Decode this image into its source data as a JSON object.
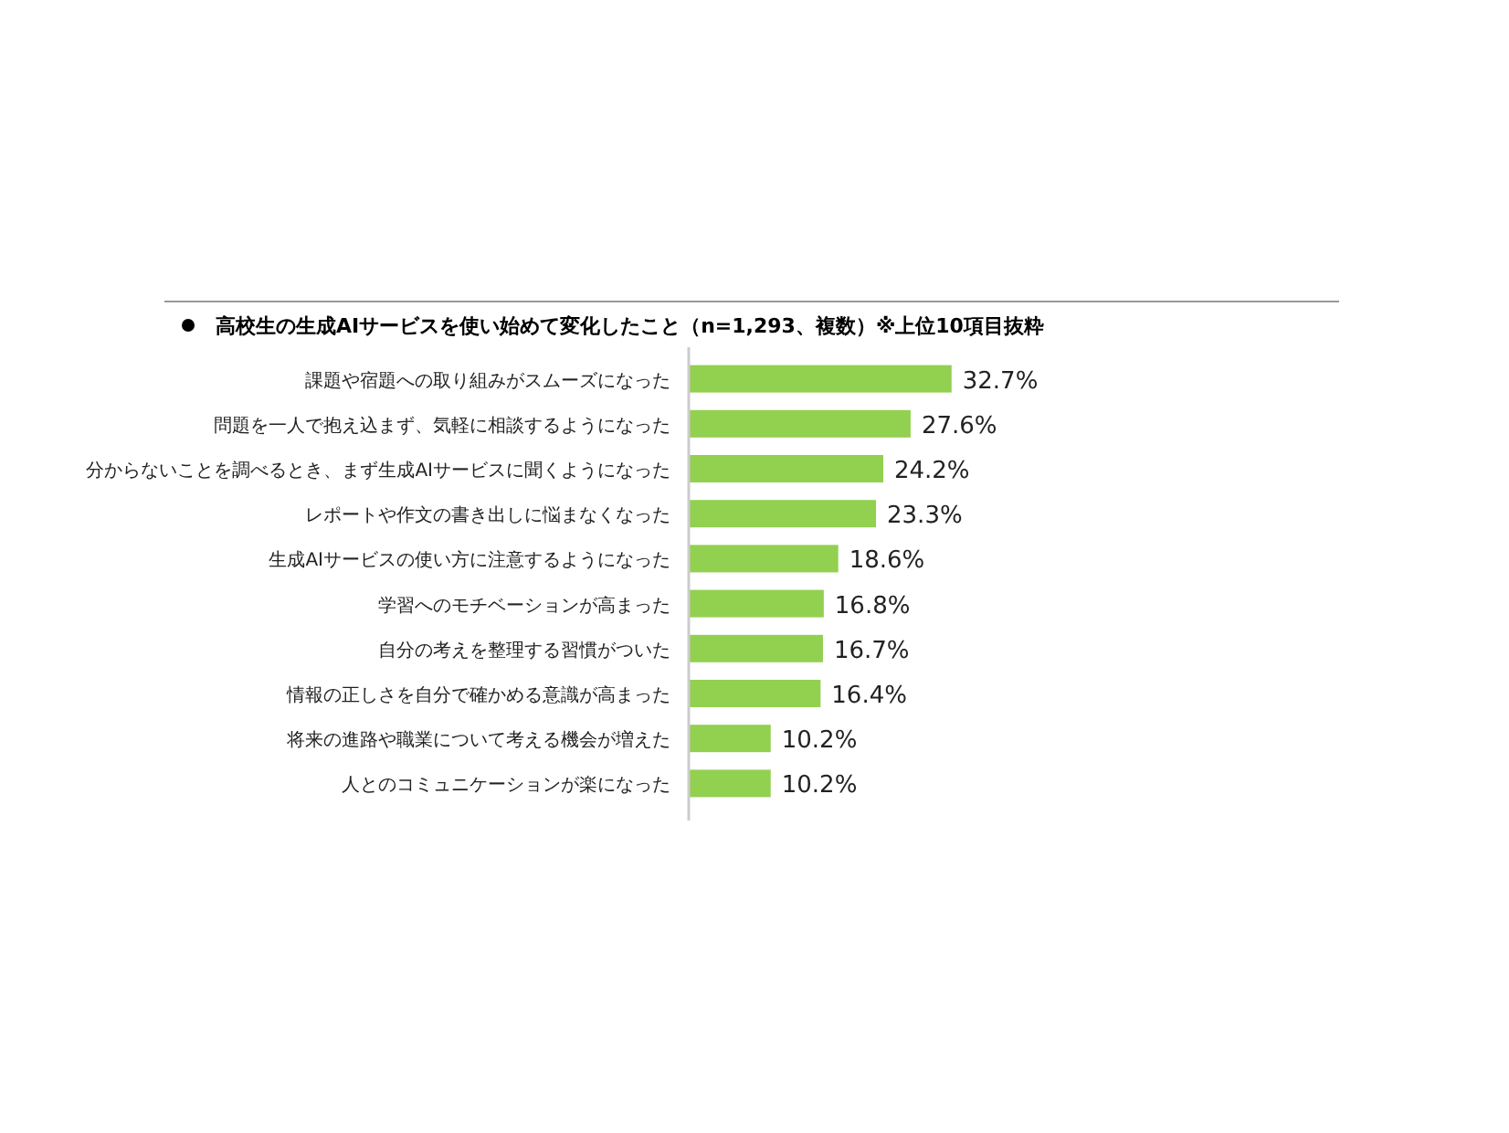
{
  "chart_data": {
    "type": "bar",
    "orientation": "horizontal",
    "title": "高校生の生成AIサービスを使い始めて変化したこと（n=1,293、複数）※上位10項目抜粋",
    "categories": [
      "課題や宿題への取り組みがスムーズになった",
      "問題を一人で抱え込まず、気軽に相談するようになった",
      "分からないことを調べるとき、まず生成AIサービスに聞くようになった",
      "レポートや作文の書き出しに悩まなくなった",
      "生成AIサービスの使い方に注意するようになった",
      "学習へのモチベーションが高まった",
      "自分の考えを整理する習慣がついた",
      "情報の正しさを自分で確かめる意識が高まった",
      "将来の進路や職業について考える機会が増えた",
      "人とのコミュニケーションが楽になった"
    ],
    "values": [
      32.7,
      27.6,
      24.2,
      23.3,
      18.6,
      16.8,
      16.7,
      16.4,
      10.2,
      10.2
    ],
    "value_labels": [
      "32.7%",
      "27.6%",
      "24.2%",
      "23.3%",
      "18.6%",
      "16.8%",
      "16.7%",
      "16.4%",
      "10.2%",
      "10.2%"
    ],
    "color": "#92d050",
    "tick_labels": "y"
  }
}
